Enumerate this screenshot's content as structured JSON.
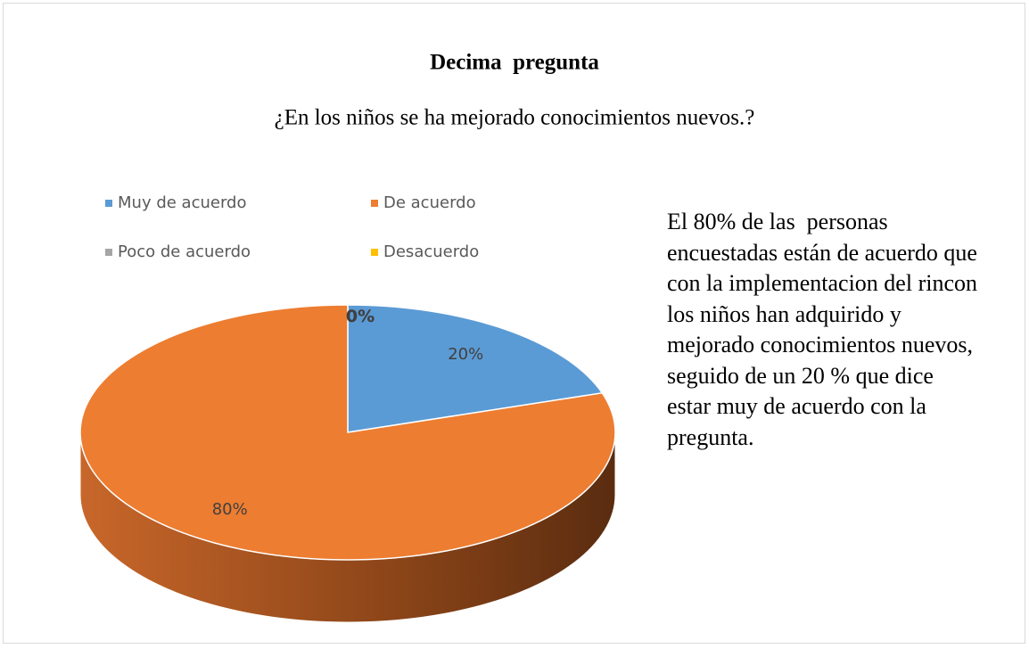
{
  "chart_data": {
    "type": "pie",
    "title": "Decima  pregunta",
    "subtitle": "¿En los niños se ha mejorado conocimientos nuevos.?",
    "categories": [
      "Muy de acuerdo",
      "De acuerdo",
      "Poco de acuerdo",
      "Desacuerdo"
    ],
    "values": [
      20,
      80,
      0,
      0
    ],
    "value_labels": [
      "20%",
      "80%",
      "0%",
      "0%"
    ],
    "colors": [
      "#5b9bd5",
      "#ed7d31",
      "#a5a5a5",
      "#ffc000"
    ],
    "legend": "top",
    "annotation": "El 80% de las  personas encuestadas están de acuerdo que con la implementacion del rincon los niños han adquirido y mejorado conocimientos nuevos, seguido de un 20 % que dice estar muy de acuerdo con la pregunta."
  }
}
